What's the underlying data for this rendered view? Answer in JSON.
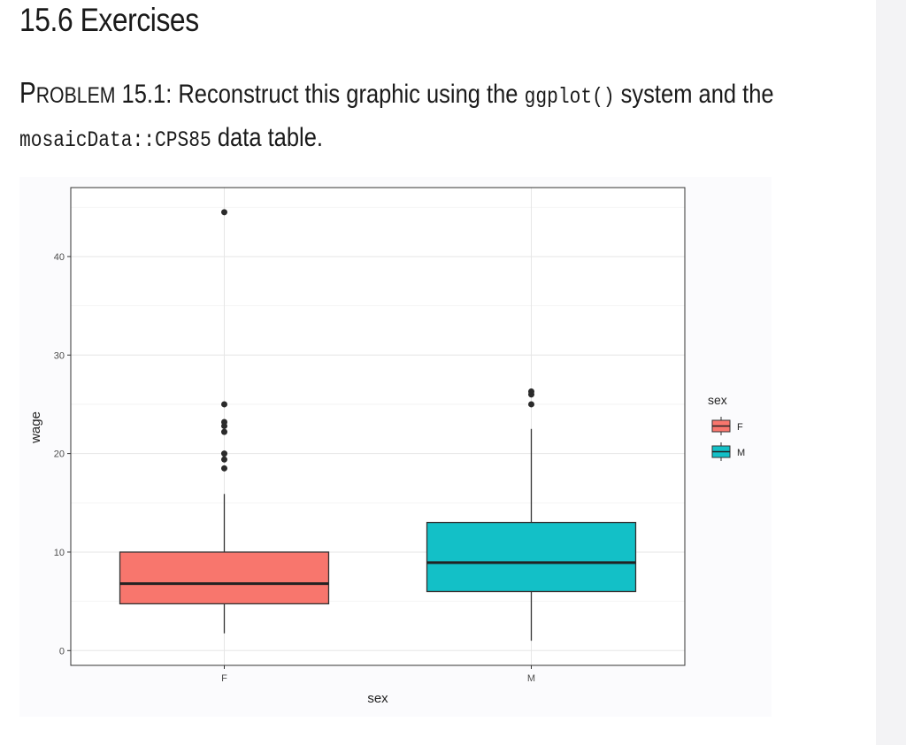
{
  "heading": "15.6 Exercises",
  "problem": {
    "label_first": "P",
    "label_rest": "ROBLEM",
    "number": "15.1",
    "text_before": ": Reconstruct this graphic using the ",
    "code1": "ggplot()",
    "text_middle": " system and the",
    "code2": "mosaicData::CPS85",
    "text_after": " data table."
  },
  "chart_data": {
    "type": "boxplot",
    "xlabel": "sex",
    "ylabel": "wage",
    "categories": [
      "F",
      "M"
    ],
    "ylim": [
      -1.5,
      47
    ],
    "yticks": [
      0,
      10,
      20,
      30,
      40
    ],
    "grid": true,
    "legend": {
      "title": "sex",
      "position": "right",
      "entries": [
        "F",
        "M"
      ]
    },
    "colors": {
      "F": "#f8766d",
      "M": "#13c0c7"
    },
    "boxes": [
      {
        "category": "F",
        "whisker_low": 1.75,
        "q1": 4.75,
        "median": 6.8,
        "q3": 10.0,
        "whisker_high": 15.9,
        "outliers": [
          18.5,
          19.4,
          20.0,
          22.2,
          22.8,
          23.2,
          25.0,
          44.5
        ]
      },
      {
        "category": "M",
        "whisker_low": 1.0,
        "q1": 6.0,
        "median": 8.93,
        "q3": 13.0,
        "whisker_high": 22.5,
        "outliers": [
          25.0,
          26.0,
          26.3
        ]
      }
    ]
  }
}
